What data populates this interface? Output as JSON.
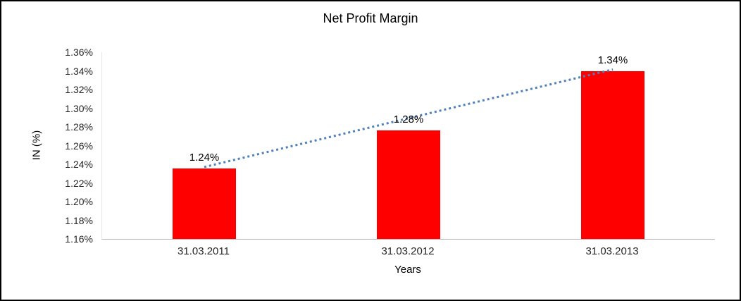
{
  "chart_data": {
    "type": "bar",
    "title": "Net Profit Margin",
    "xlabel": "Years",
    "ylabel": "IN (%)",
    "categories": [
      "31.03.2011",
      "31.03.2012",
      "31.03.2013"
    ],
    "values": [
      1.2355,
      1.2765,
      1.34
    ],
    "value_labels": [
      "1.24%",
      "1.28%",
      "1.34%"
    ],
    "ylim": [
      1.16,
      1.36
    ],
    "ytick_step": 0.02,
    "ytick_labels": [
      "1.16%",
      "1.18%",
      "1.20%",
      "1.22%",
      "1.24%",
      "1.26%",
      "1.28%",
      "1.30%",
      "1.32%",
      "1.34%",
      "1.36%"
    ],
    "bar_color": "#FF0000",
    "trendline": {
      "color": "#4E81BD",
      "style": "dotted"
    },
    "grid": false,
    "legend": false
  }
}
